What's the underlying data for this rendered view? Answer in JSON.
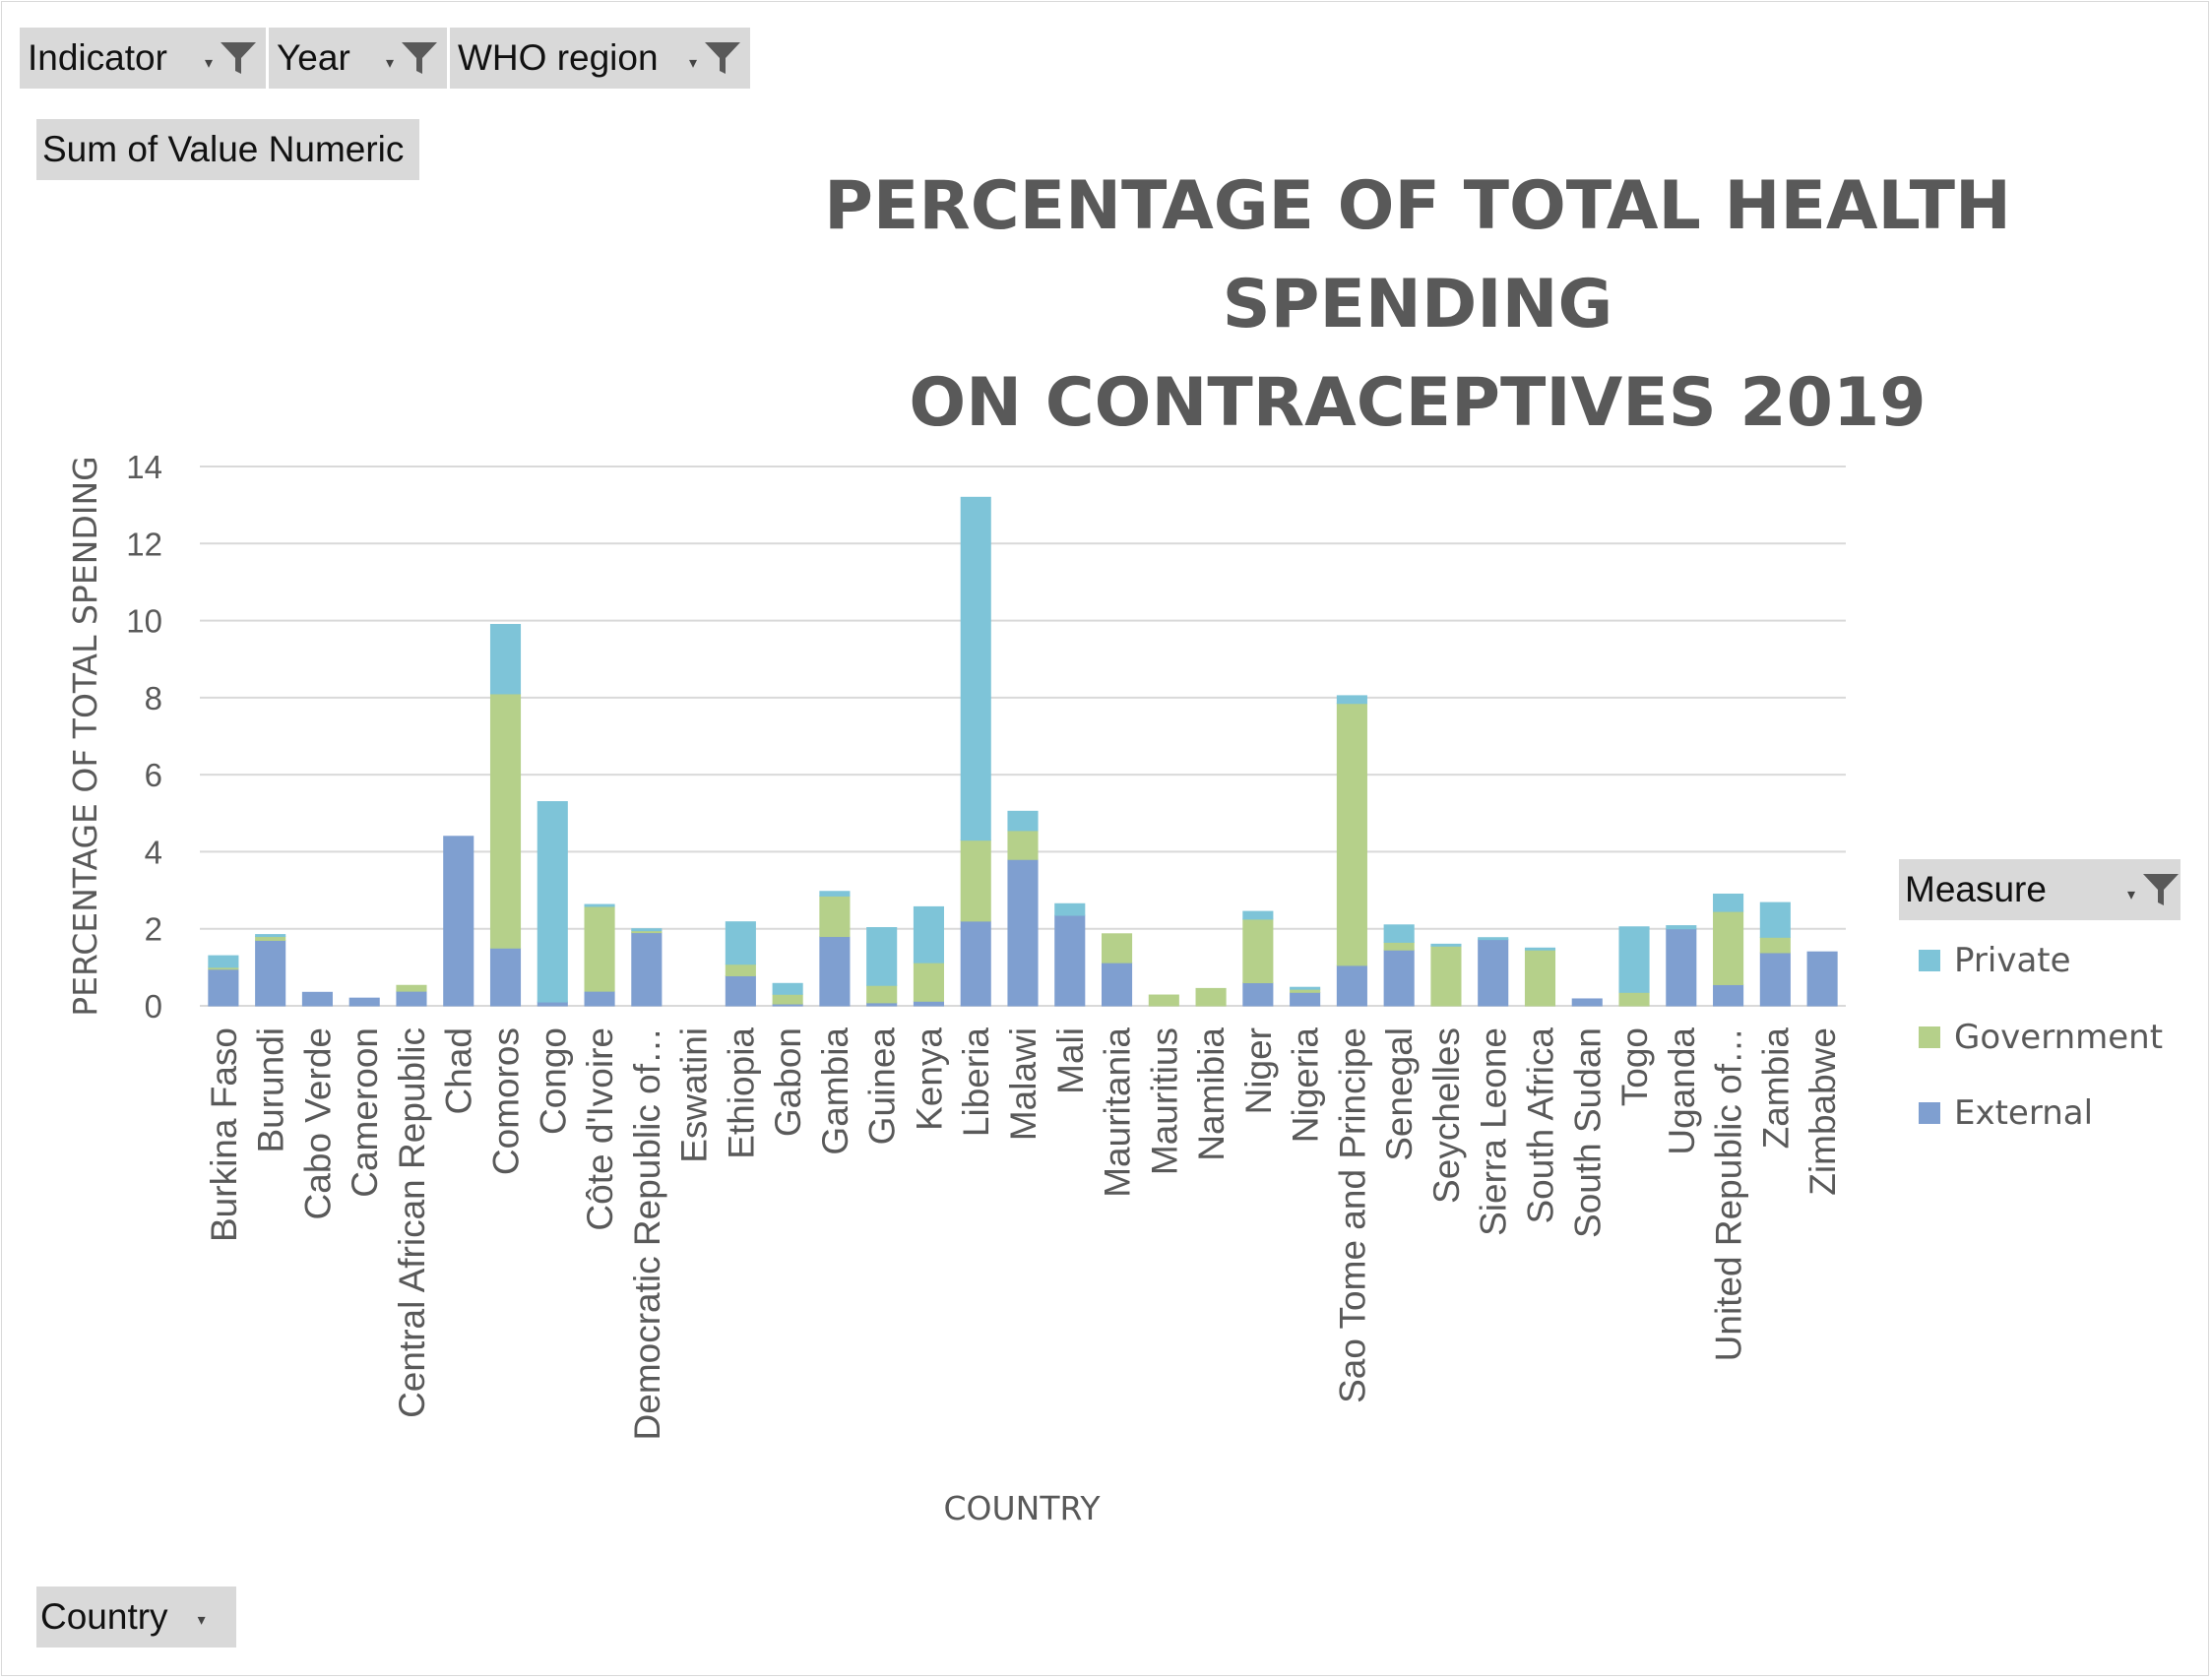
{
  "filters": {
    "indicator": "Indicator",
    "year": "Year",
    "region": "WHO region"
  },
  "values_field": "Sum of Value Numeric",
  "row_field": "Country",
  "legend": {
    "title": "Measure",
    "items": [
      {
        "label": "Private",
        "color": "#7ec4d8"
      },
      {
        "label": "Government",
        "color": "#b5d08a"
      },
      {
        "label": "External",
        "color": "#7f9fd0"
      }
    ]
  },
  "chart_data": {
    "type": "bar",
    "stacked": true,
    "title": "PERCENTAGE OF TOTAL HEALTH SPENDING ON CONTRACEPTIVES 2019",
    "title_lines": [
      "PERCENTAGE OF TOTAL HEALTH SPENDING",
      "ON CONTRACEPTIVES 2019"
    ],
    "xlabel": "COUNTRY",
    "ylabel": "PERCENTAGE OF TOTAL SPENDING",
    "ylim": [
      0,
      14
    ],
    "yticks": [
      0,
      2,
      4,
      6,
      8,
      10,
      12,
      14
    ],
    "grid": true,
    "legend_position": "right",
    "categories": [
      "Burkina Faso",
      "Burundi",
      "Cabo Verde",
      "Cameroon",
      "Central African Republic",
      "Chad",
      "Comoros",
      "Congo",
      "Côte d'Ivoire",
      "Democratic Republic of…",
      "Eswatini",
      "Ethiopia",
      "Gabon",
      "Gambia",
      "Guinea",
      "Kenya",
      "Liberia",
      "Malawi",
      "Mali",
      "Mauritania",
      "Mauritius",
      "Namibia",
      "Niger",
      "Nigeria",
      "Sao Tome and Principe",
      "Senegal",
      "Seychelles",
      "Sierra Leone",
      "South Africa",
      "South Sudan",
      "Togo",
      "Uganda",
      "United Republic of…",
      "Zambia",
      "Zimbabwe"
    ],
    "series": [
      {
        "name": "External",
        "color": "#7f9fd0",
        "values": [
          0.95,
          1.7,
          0.35,
          0.2,
          0.38,
          4.4,
          1.5,
          0.1,
          0.38,
          1.9,
          0,
          0.78,
          0.05,
          1.8,
          0.08,
          0.12,
          2.2,
          3.8,
          2.35,
          1.12,
          0,
          0,
          0.6,
          0.35,
          1.05,
          1.45,
          0,
          1.72,
          0,
          0.18,
          0,
          2.0,
          0.55,
          1.38,
          1.4
        ]
      },
      {
        "name": "Government",
        "color": "#b5d08a",
        "values": [
          0.05,
          0.1,
          0,
          0,
          0.15,
          0,
          6.6,
          0,
          2.2,
          0.05,
          0,
          0.3,
          0.25,
          1.05,
          0.45,
          1.0,
          2.1,
          0.75,
          0,
          0.75,
          0.28,
          0.45,
          1.65,
          0.08,
          6.8,
          0.2,
          1.55,
          0,
          1.45,
          0,
          0.35,
          0,
          1.9,
          0.4,
          0
        ]
      },
      {
        "name": "Private",
        "color": "#7ec4d8",
        "values": [
          0.3,
          0.05,
          0,
          0,
          0,
          0,
          1.8,
          5.2,
          0.05,
          0.05,
          0,
          1.1,
          0.28,
          0.12,
          1.5,
          1.45,
          8.9,
          0.5,
          0.3,
          0,
          0,
          0,
          0.2,
          0.05,
          0.2,
          0.45,
          0.05,
          0.05,
          0.05,
          0,
          1.7,
          0.08,
          0.45,
          0.9,
          0
        ]
      }
    ]
  }
}
